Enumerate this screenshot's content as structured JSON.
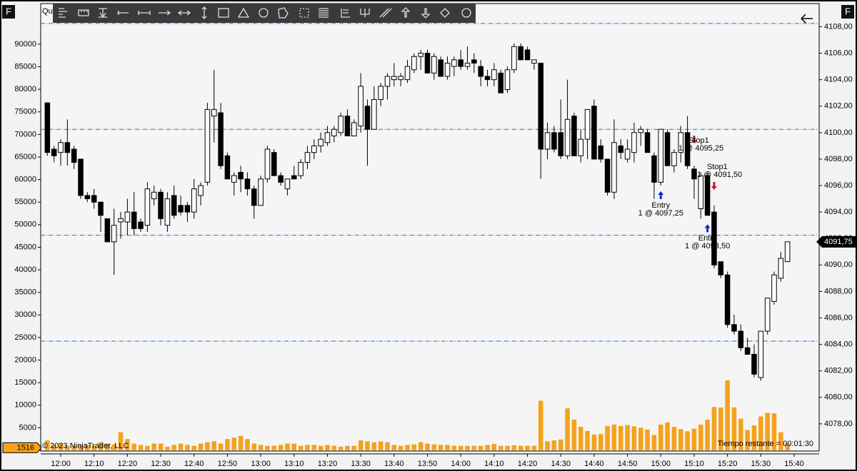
{
  "chart_data": [
    {
      "type": "candlestick",
      "title": "Qui",
      "x": [
        716,
        718,
        720,
        722,
        724,
        726,
        728,
        730,
        732,
        734,
        736,
        738,
        740,
        742,
        744,
        746,
        748,
        750,
        752,
        754,
        756,
        758,
        760,
        762,
        764,
        766,
        768,
        770,
        772,
        774,
        776,
        778,
        780,
        782,
        784,
        786,
        788,
        790,
        792,
        794,
        796,
        798,
        800,
        802,
        804,
        806,
        808,
        810,
        812,
        814,
        816,
        818,
        820,
        822,
        824,
        826,
        828,
        830,
        832,
        834,
        836,
        838,
        840,
        842,
        844,
        846,
        848,
        850,
        852,
        854,
        856,
        858,
        860,
        862,
        864,
        866,
        868,
        870,
        872,
        874,
        876,
        878,
        880,
        882,
        884,
        886,
        888,
        890,
        892,
        894,
        896,
        898,
        900,
        902,
        904,
        906,
        908,
        910,
        912,
        914,
        916,
        918,
        920,
        922,
        924,
        926,
        928,
        930,
        932,
        934,
        936,
        938
      ],
      "open": [
        4102.25,
        4098.75,
        4098.5,
        4099.25,
        4098.75,
        4098,
        4095.25,
        4095.25,
        4094.75,
        4093.5,
        4091.75,
        4093.25,
        4093.25,
        4094,
        4093.25,
        4093,
        4095,
        4095.5,
        4093,
        4095.25,
        4094.5,
        4094.5,
        4094,
        4095.25,
        4096.25,
        4101.25,
        4101.5,
        4098.25,
        4096.25,
        4097,
        4096.5,
        4095.75,
        4094.5,
        4096.5,
        4098.5,
        4096.75,
        4095.75,
        4096.75,
        4096.75,
        4097.75,
        4098.5,
        4099,
        4099.25,
        4099.75,
        4100,
        4101.25,
        4099.75,
        4100.5,
        4102,
        4100.25,
        4102.5,
        4103.5,
        4104,
        4104,
        4104,
        4104.75,
        4105.75,
        4106,
        4104.5,
        4105.5,
        4104.25,
        4105,
        4105.5,
        4105,
        4105.5,
        4105,
        4104.25,
        4104,
        4104.5,
        4103.25,
        4104.75,
        4106.5,
        4106.25,
        4105.25,
        4105.25,
        4098.75,
        4100,
        4100,
        4098.25,
        4101.25,
        4098.25,
        4099.5,
        4102,
        4099,
        4098,
        4095.5,
        4099,
        4098,
        4098.5,
        4100,
        4100,
        4098.25,
        4096.25,
        4100,
        4097.5,
        4098.5,
        4100,
        4097.25,
        4094.25,
        4096.75,
        4094,
        4090.25,
        4089.25,
        4085.5,
        4085,
        4083.75,
        4083.25,
        4081.5,
        4085,
        4087.25,
        4089,
        4090.25
      ],
      "high": [
        4102.25,
        4099,
        4099.5,
        4101,
        4099,
        4098,
        4095.5,
        4095.75,
        4094.75,
        4093.5,
        4094.25,
        4094,
        4095,
        4095.5,
        4093.5,
        4096.25,
        4096,
        4095.75,
        4095.5,
        4096,
        4095.25,
        4094.75,
        4096.5,
        4096.25,
        4102.25,
        4104.75,
        4102.25,
        4098.5,
        4097,
        4097.5,
        4097,
        4096,
        4096.75,
        4099,
        4098.75,
        4097,
        4096.5,
        4097.5,
        4098,
        4099,
        4099.5,
        4100,
        4100.5,
        4100.5,
        4101.5,
        4101.75,
        4101,
        4104.5,
        4102.5,
        4103.5,
        4103.75,
        4104.5,
        4105.25,
        4104.5,
        4105.5,
        4106,
        4106.25,
        4106.25,
        4106,
        4105.75,
        4105.75,
        4105.75,
        4106.25,
        4106.5,
        4106,
        4105.5,
        4104.75,
        4105.25,
        4104.75,
        4105,
        4106.75,
        4106.75,
        4106.5,
        4105.5,
        4105.25,
        4100.75,
        4100.5,
        4102.5,
        4104,
        4101.5,
        4100.25,
        4101.75,
        4102.5,
        4099.5,
        4098,
        4101,
        4099.5,
        4099.5,
        4100.75,
        4100.5,
        4100.25,
        4098.5,
        4100.25,
        4100.25,
        4098.75,
        4100.5,
        4101.25,
        4097.5,
        4097,
        4097,
        4094.5,
        4090.25,
        4089.5,
        4086.25,
        4085.5,
        4084.5,
        4084,
        4085,
        4087.5,
        4089.5,
        4091,
        4091.75
      ],
      "low": [
        4098.25,
        4097.75,
        4097.5,
        4097.5,
        4097.25,
        4095,
        4094.75,
        4094.25,
        4092.5,
        4091.75,
        4089.25,
        4092,
        4092.25,
        4092.25,
        4092.5,
        4092.5,
        4094.5,
        4093,
        4092.5,
        4093.5,
        4093.75,
        4093.25,
        4093.5,
        4094.5,
        4096,
        4099.25,
        4097.25,
        4096.5,
        4095.25,
        4095.5,
        4095.25,
        4093.5,
        4094.5,
        4096.25,
        4096.75,
        4096,
        4095.25,
        4096.5,
        4096.5,
        4097.25,
        4098,
        4098.5,
        4099,
        4099.25,
        4099.75,
        4099.75,
        4099.75,
        4100,
        4097.5,
        4100.25,
        4102,
        4102.5,
        4103.5,
        4103.5,
        4103.75,
        4104.5,
        4104.75,
        4104.5,
        4104,
        4104.25,
        4104,
        4104.25,
        4104.75,
        4104.75,
        4104.5,
        4103.5,
        4103.5,
        4103.5,
        4103,
        4103,
        4104.5,
        4105.5,
        4105.5,
        4104.75,
        4096.5,
        4098,
        4098.5,
        4098,
        4098,
        4098.25,
        4097.75,
        4098,
        4098,
        4097.75,
        4095.25,
        4095,
        4098,
        4097.75,
        4097.75,
        4099,
        4098.5,
        4095,
        4096,
        4097.5,
        4097,
        4097.75,
        4097.25,
        4095,
        4093.5,
        4093.75,
        4089.75,
        4089,
        4085.25,
        4084.75,
        4083.5,
        4083.25,
        4081.5,
        4081.25,
        4084.75,
        4087,
        4088.75,
        4090.25
      ],
      "close": [
        4098.5,
        4098.25,
        4099.25,
        4098.5,
        4097.75,
        4095.25,
        4095,
        4094.75,
        4093.75,
        4091.75,
        4093,
        4093.5,
        4094,
        4092.75,
        4092.75,
        4095.75,
        4095.5,
        4093.5,
        4095,
        4093.75,
        4094,
        4094,
        4095.75,
        4096,
        4101.75,
        4101.75,
        4097.5,
        4096.5,
        4096.75,
        4096.5,
        4095.75,
        4094.5,
        4096.5,
        4098.75,
        4096.75,
        4096.25,
        4096.5,
        4096.5,
        4097.75,
        4098.5,
        4099,
        4099.5,
        4100,
        4100.25,
        4101.25,
        4099.75,
        4100.75,
        4103.5,
        4100.25,
        4102.5,
        4103.5,
        4104.25,
        4104.25,
        4104.25,
        4105,
        4105.75,
        4106,
        4104.5,
        4105.75,
        4104.25,
        4105.25,
        4105.5,
        4105,
        4105.25,
        4105.25,
        4104.25,
        4104,
        4104.75,
        4103,
        4104.75,
        4106.5,
        4105.5,
        4105.5,
        4105.5,
        4098.75,
        4100,
        4098.75,
        4098.25,
        4101,
        4098.25,
        4099.5,
        4101.75,
        4098,
        4098,
        4095.5,
        4099.25,
        4098.5,
        4098.75,
        4100,
        4100.25,
        4098.5,
        4096.25,
        4100.25,
        4097.5,
        4098.5,
        4100,
        4097.5,
        4096.5,
        4096.75,
        4093.75,
        4090,
        4089.25,
        4085.5,
        4085,
        4083.75,
        4083.25,
        4081.75,
        4085,
        4087.5,
        4089.25,
        4090.5,
        4091.75
      ],
      "close_label": "4091,75",
      "up_color": "#ffffff",
      "down_color": "#000000",
      "xlim": [
        714,
        947.5
      ],
      "xticks": [
        {
          "value": 720,
          "label": "12:00"
        },
        {
          "value": 730,
          "label": "12:10"
        },
        {
          "value": 740,
          "label": "12:20"
        },
        {
          "value": 750,
          "label": "12:30"
        },
        {
          "value": 760,
          "label": "12:40"
        },
        {
          "value": 770,
          "label": "12:50"
        },
        {
          "value": 780,
          "label": "13:00"
        },
        {
          "value": 790,
          "label": "13:10"
        },
        {
          "value": 800,
          "label": "13:20"
        },
        {
          "value": 810,
          "label": "13:30"
        },
        {
          "value": 820,
          "label": "13:40"
        },
        {
          "value": 830,
          "label": "13:50"
        },
        {
          "value": 840,
          "label": "14:00"
        },
        {
          "value": 850,
          "label": "14:10"
        },
        {
          "value": 860,
          "label": "14:20"
        },
        {
          "value": 870,
          "label": "14:30"
        },
        {
          "value": 880,
          "label": "14:40"
        },
        {
          "value": 890,
          "label": "14:50"
        },
        {
          "value": 900,
          "label": "15:00"
        },
        {
          "value": 910,
          "label": "15:10"
        },
        {
          "value": 920,
          "label": "15:20"
        },
        {
          "value": 930,
          "label": "15:30"
        },
        {
          "value": 940,
          "label": "15:40"
        }
      ],
      "ylim": [
        4076,
        4109.75
      ],
      "yticks": [
        {
          "value": 4078,
          "label": "4078,00"
        },
        {
          "value": 4080,
          "label": "4080,00"
        },
        {
          "value": 4082,
          "label": "4082,00"
        },
        {
          "value": 4084,
          "label": "4084,00"
        },
        {
          "value": 4086,
          "label": "4086,00"
        },
        {
          "value": 4088,
          "label": "4088,00"
        },
        {
          "value": 4090,
          "label": "4090,00"
        },
        {
          "value": 4092,
          "label": "4092,00"
        },
        {
          "value": 4094,
          "label": "4094,00"
        },
        {
          "value": 4096,
          "label": "4096,00"
        },
        {
          "value": 4098,
          "label": "4098,00"
        },
        {
          "value": 4100,
          "label": "4100,00"
        },
        {
          "value": 4102,
          "label": "4102,00"
        },
        {
          "value": 4104,
          "label": "4104,00"
        },
        {
          "value": 4106,
          "label": "4106,00"
        },
        {
          "value": 4108,
          "label": "4108,00"
        }
      ],
      "hlines": [
        4108.25,
        4100.25,
        4092.25,
        4084.25
      ],
      "hline_color": "#1c6fd6",
      "annotations": [
        {
          "label": "Entry",
          "detail": "1 @ 4097,25",
          "x": 900,
          "price": 4095.25,
          "direction": "up",
          "color": "#0a2ccc"
        },
        {
          "label": "Stop1",
          "detail": "1 @ 4095,25",
          "x": 910,
          "price": 4099.5,
          "direction": "down",
          "color": "#d0102a"
        },
        {
          "label": "Stop1",
          "detail": "1 @ 4091,50",
          "x": 916,
          "price": 4096,
          "direction": "down",
          "color": "#d0102a"
        },
        {
          "label": "Entry",
          "detail": "1 @ 4093,50",
          "x": 914,
          "price": 4092.75,
          "direction": "up",
          "color": "#0a2ccc"
        }
      ]
    },
    {
      "type": "bar",
      "name": "volume",
      "color": "#f5a21b",
      "values": [
        2200,
        1200,
        1500,
        1000,
        1000,
        1200,
        1200,
        1000,
        1800,
        1500,
        1300,
        4000,
        2500,
        1500,
        1200,
        1000,
        1500,
        1500,
        800,
        1200,
        1500,
        1200,
        1000,
        1500,
        1800,
        2000,
        1500,
        2500,
        2800,
        3200,
        2500,
        1500,
        1200,
        1000,
        1000,
        1200,
        1500,
        1500,
        1000,
        1200,
        1200,
        1000,
        1200,
        1000,
        800,
        1000,
        1000,
        2200,
        2000,
        1800,
        2000,
        1800,
        1200,
        1000,
        1200,
        1300,
        1800,
        1500,
        1300,
        1200,
        1200,
        1000,
        1000,
        1000,
        1000,
        1000,
        1200,
        1400,
        1000,
        1000,
        1100,
        1000,
        1000,
        1000,
        11000,
        2000,
        2200,
        2400,
        9300,
        6800,
        5200,
        4300,
        3500,
        3600,
        5400,
        5700,
        5400,
        5600,
        5300,
        5000,
        4600,
        3400,
        5700,
        6200,
        5200,
        4700,
        4200,
        4800,
        5700,
        6800,
        9600,
        9500,
        15500,
        9500,
        7000,
        4500,
        5500,
        7500,
        8300,
        8200,
        4000,
        1516
      ],
      "ylim": [
        0,
        99000
      ],
      "yticks": [
        0,
        5000,
        10000,
        15000,
        20000,
        25000,
        30000,
        35000,
        40000,
        45000,
        50000,
        55000,
        60000,
        65000,
        70000,
        75000,
        80000,
        85000,
        90000
      ],
      "footer_left": "© 2023 NinjaTrader, LLC",
      "footer_right": "Tiempo restante = 00:01:30"
    }
  ]
}
